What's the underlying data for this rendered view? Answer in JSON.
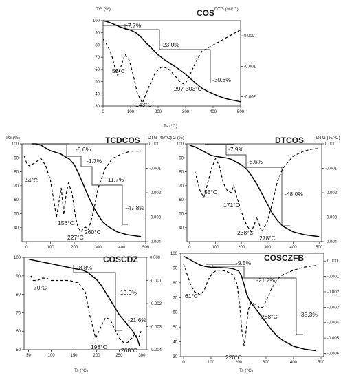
{
  "figure": {
    "panels": [
      {
        "id": "cos",
        "title": "COS",
        "y_label": "TG (%)",
        "y2_label": "DTG (%/°C)",
        "x_label": "Ts (°C)",
        "chart_data": {
          "type": "line",
          "title": "COS",
          "xlabel": "Ts (°C)",
          "ylabel": "TG (%)",
          "y2label": "DTG (%/°C)",
          "xlim": [
            0,
            500
          ],
          "ylim": [
            30,
            100
          ],
          "y2lim": [
            -0.0023,
            0.0005
          ],
          "x_ticks": [
            "0",
            "100",
            "200",
            "300",
            "400",
            "500"
          ],
          "y_ticks": [
            "30",
            "40",
            "50",
            "60",
            "70",
            "80",
            "90",
            "100"
          ],
          "y2_ticks": [
            "0.000",
            "-0.001",
            "-0.002"
          ],
          "series": [
            {
              "axis": "left",
              "style": "solid",
              "x": [
                0,
                20,
                40,
                60,
                80,
                100,
                120,
                140,
                160,
                180,
                200,
                220,
                240,
                260,
                280,
                300,
                320,
                340,
                360,
                380,
                400,
                420,
                440,
                460,
                480,
                500
              ],
              "y": [
                100,
                98.8,
                97,
                95,
                93.5,
                92.2,
                90,
                86,
                81,
                76.5,
                72,
                68.5,
                65.5,
                62.5,
                59.5,
                56,
                52,
                48,
                44.5,
                42,
                40,
                38,
                36.5,
                35.3,
                34.4,
                33.5
              ]
            },
            {
              "axis": "right",
              "style": "dashed",
              "x": [
                0,
                15,
                30,
                45,
                53,
                65,
                80,
                95,
                110,
                125,
                143,
                165,
                190,
                215,
                240,
                260,
                280,
                297,
                303,
                320,
                340,
                360,
                380,
                400,
                420,
                440,
                460,
                480,
                500
              ],
              "y": [
                -0.0001,
                -0.0003,
                -0.0006,
                -0.0011,
                -0.0013,
                -0.001,
                -0.0006,
                -0.0008,
                -0.0013,
                -0.0019,
                -0.0022,
                -0.0017,
                -0.0012,
                -0.001,
                -0.0011,
                -0.0013,
                -0.0015,
                -0.0016,
                -0.0015,
                -0.0012,
                -0.0008,
                -0.0005,
                -0.0004,
                -0.0003,
                -0.0002,
                -0.0001,
                0.0,
                0.0001,
                0.0002
              ]
            }
          ]
        },
        "annotations": [
          "-7.7%",
          "-23.0%",
          "-30.8%",
          "53°C",
          "143°C",
          "297-303°C"
        ]
      },
      {
        "id": "tcdcos",
        "title": "TCDCOS",
        "y_label": "TG (%)",
        "y2_label": "DTG (%/°C)",
        "x_label": "",
        "chart_data": {
          "type": "line",
          "title": "TCDCOS",
          "xlabel": "",
          "ylabel": "TG (%)",
          "y2label": "DTG (%/°C)",
          "xlim": [
            -20,
            500
          ],
          "ylim": [
            30,
            100
          ],
          "y2lim": [
            -0.004,
            0.0
          ],
          "x_ticks": [
            "0",
            "100",
            "200",
            "300",
            "400",
            "500"
          ],
          "y_ticks": [
            "40",
            "50",
            "60",
            "70",
            "80",
            "90",
            "100"
          ],
          "y2_ticks": [
            "0.000",
            "-0.001",
            "-0.002",
            "-0.003",
            "-0.004"
          ],
          "series": [
            {
              "axis": "left",
              "style": "solid",
              "x": [
                20,
                40,
                60,
                80,
                100,
                120,
                140,
                160,
                180,
                200,
                220,
                240,
                260,
                280,
                300,
                320,
                340,
                360,
                380,
                400,
                420,
                440,
                460,
                480
              ],
              "y": [
                100,
                100,
                99,
                97,
                95,
                94,
                93,
                91,
                89,
                85,
                78,
                70,
                62,
                55,
                49,
                44,
                41,
                39,
                37,
                36,
                35,
                34.5,
                34,
                33.5
              ]
            },
            {
              "axis": "right",
              "style": "dashed",
              "x": [
                -10,
                0,
                10,
                30,
                44,
                60,
                80,
                100,
                115,
                125,
                135,
                145,
                156,
                165,
                175,
                190,
                205,
                215,
                227,
                245,
                260,
                280,
                300,
                330,
                360,
                400,
                440,
                480
              ],
              "y": [
                -0.0005,
                -0.0008,
                -0.0009,
                -0.0008,
                -0.0007,
                -0.0006,
                -0.0009,
                -0.0015,
                -0.0024,
                -0.003,
                -0.0024,
                -0.0018,
                -0.0029,
                -0.0021,
                -0.0016,
                -0.002,
                -0.003,
                -0.0034,
                -0.0036,
                -0.0034,
                -0.0035,
                -0.0028,
                -0.0018,
                -0.001,
                -0.0006,
                -0.0004,
                -0.0003,
                -0.0003
              ]
            }
          ]
        },
        "annotations": [
          "-5.6%",
          "-1.7%",
          "-11.7%",
          "-47.8%",
          "44°C",
          "156°C",
          "227°C",
          "260°C"
        ]
      },
      {
        "id": "dtcos",
        "title": "DTCOS",
        "y_label": "TG (%)",
        "y2_label": "DTG (%/°C)",
        "x_label": "",
        "chart_data": {
          "type": "line",
          "title": "DTCOS",
          "xlabel": "",
          "ylabel": "TG (%)",
          "y2label": "DTG (%/°C)",
          "xlim": [
            -10,
            510
          ],
          "ylim": [
            30,
            100
          ],
          "y2lim": [
            -0.004,
            0.0
          ],
          "x_ticks": [
            "0",
            "100",
            "200",
            "300",
            "400",
            "500"
          ],
          "y_ticks": [
            "40",
            "50",
            "60",
            "70",
            "80",
            "90",
            "100"
          ],
          "y2_ticks": [
            "0.000",
            "-0.001",
            "-0.002",
            "-0.003",
            "-0.004"
          ],
          "series": [
            {
              "axis": "left",
              "style": "solid",
              "x": [
                0,
                20,
                40,
                60,
                80,
                100,
                120,
                140,
                160,
                180,
                200,
                220,
                240,
                260,
                280,
                300,
                320,
                340,
                360,
                380,
                400,
                420,
                440,
                460,
                480,
                500
              ],
              "y": [
                99,
                98,
                96,
                94,
                92,
                91,
                90.5,
                90,
                89,
                87,
                85,
                82,
                77,
                71,
                64,
                57,
                50,
                45,
                41,
                39,
                37,
                36,
                35,
                34.5,
                34,
                33.5
              ]
            },
            {
              "axis": "right",
              "style": "dashed",
              "x": [
                20,
                30,
                40,
                55,
                70,
                85,
                100,
                115,
                130,
                145,
                160,
                171,
                180,
                195,
                210,
                225,
                238,
                250,
                260,
                278,
                300,
                320,
                340,
                360,
                400,
                440,
                480,
                500
              ],
              "y": [
                -0.0011,
                -0.0015,
                -0.0019,
                -0.0022,
                -0.0016,
                -0.001,
                -0.0006,
                -0.0009,
                -0.0016,
                -0.0019,
                -0.002,
                -0.0017,
                -0.0021,
                -0.0026,
                -0.0031,
                -0.0034,
                -0.0036,
                -0.0033,
                -0.003,
                -0.0036,
                -0.0032,
                -0.0024,
                -0.0015,
                -0.001,
                -0.0005,
                -0.0003,
                -0.0002,
                -0.0002
              ]
            }
          ]
        },
        "annotations": [
          "-7.9%",
          "-8.6%",
          "-48.0%",
          "55°C",
          "171°C",
          "238°C",
          "278°C"
        ]
      },
      {
        "id": "coscdz",
        "title": "COSCDZ",
        "y_label": "",
        "y2_label": "",
        "x_label": "Ts (°C)",
        "chart_data": {
          "type": "line",
          "title": "COSCDZ",
          "xlabel": "Ts (°C)",
          "ylabel": "",
          "y2label": "",
          "xlim": [
            40,
            310
          ],
          "ylim": [
            50,
            100
          ],
          "y2lim": [
            -0.004,
            0.0
          ],
          "x_ticks": [
            "50",
            "100",
            "150",
            "200",
            "250",
            "300"
          ],
          "y_ticks": [
            "50",
            "60",
            "70",
            "80",
            "90",
            "100"
          ],
          "y2_ticks": [
            "0.000",
            "-0.001",
            "-0.002",
            "-0.003",
            "-0.004"
          ],
          "series": [
            {
              "axis": "left",
              "style": "solid",
              "x": [
                50,
                70,
                90,
                110,
                130,
                150,
                170,
                180,
                190,
                200,
                210,
                220,
                230,
                240,
                250,
                260,
                270,
                280,
                290,
                295
              ],
              "y": [
                99,
                98,
                97,
                96,
                95,
                94,
                93,
                92,
                90,
                88,
                85,
                81,
                77,
                73,
                69,
                66,
                63,
                60,
                56,
                52
              ]
            },
            {
              "axis": "right",
              "style": "dashed",
              "x": [
                55,
                60,
                70,
                80,
                90,
                100,
                120,
                140,
                160,
                175,
                185,
                198,
                210,
                220,
                230,
                240,
                250,
                260,
                268,
                278,
                285,
                290,
                295,
                298
              ],
              "y": [
                -0.0008,
                -0.001,
                -0.001,
                -0.0009,
                -0.0009,
                -0.001,
                -0.001,
                -0.001,
                -0.0011,
                -0.0015,
                -0.0025,
                -0.0035,
                -0.003,
                -0.0026,
                -0.0027,
                -0.0031,
                -0.0035,
                -0.0037,
                -0.0037,
                -0.0035,
                -0.0033,
                -0.0035,
                -0.0034,
                -0.0032
              ]
            }
          ]
        },
        "annotations": [
          "-8.8%",
          "-19.9%",
          "-21.6%",
          "70°C",
          "198°C",
          "268°C"
        ]
      },
      {
        "id": "cosczfb",
        "title": "COSCZFB",
        "y_label": "",
        "y2_label": "",
        "x_label": "Ts (°C)",
        "chart_data": {
          "type": "line",
          "title": "COSCZFB",
          "xlabel": "Ts (°C)",
          "ylabel": "",
          "y2label": "",
          "xlim": [
            -10,
            510
          ],
          "ylim": [
            30,
            100
          ],
          "y2lim": [
            -0.0062,
            0.0005
          ],
          "x_ticks": [
            "0",
            "100",
            "200",
            "300",
            "400",
            "500"
          ],
          "y_ticks": [
            "30",
            "40",
            "50",
            "60",
            "70",
            "80",
            "90",
            "100"
          ],
          "y2_ticks": [
            "0.000",
            "-0.001",
            "-0.002",
            "-0.003",
            "-0.004",
            "-0.005",
            "-0.006"
          ],
          "series": [
            {
              "axis": "left",
              "style": "solid",
              "x": [
                0,
                20,
                40,
                60,
                80,
                100,
                120,
                140,
                160,
                180,
                200,
                210,
                220,
                230,
                240,
                260,
                280,
                300,
                320,
                340,
                360,
                380,
                400,
                420,
                440,
                460,
                480
              ],
              "y": [
                98,
                96,
                94,
                92,
                91,
                90.5,
                90.3,
                90.2,
                90,
                89.5,
                88,
                85,
                79,
                72,
                68,
                63,
                58,
                53,
                48,
                44,
                41,
                39,
                37,
                36,
                35,
                34.5,
                34
              ]
            },
            {
              "axis": "right",
              "style": "dashed",
              "x": [
                0,
                10,
                25,
                40,
                61,
                75,
                90,
                105,
                120,
                140,
                160,
                180,
                195,
                205,
                212,
                220,
                228,
                235,
                245,
                260,
                275,
                288,
                300,
                320,
                340,
                360,
                400,
                440,
                480
              ],
              "y": [
                -0.0002,
                -0.0007,
                -0.0015,
                -0.002,
                -0.0022,
                -0.0019,
                -0.0012,
                -0.0008,
                -0.0006,
                -0.0006,
                -0.0007,
                -0.0009,
                -0.0015,
                -0.003,
                -0.0045,
                -0.0055,
                -0.0045,
                -0.0032,
                -0.0027,
                -0.0028,
                -0.003,
                -0.003,
                -0.0026,
                -0.0018,
                -0.0012,
                -0.0009,
                -0.0006,
                -0.0004,
                -0.0003
              ]
            }
          ]
        },
        "annotations": [
          "-9.5%",
          "-21.2%",
          "-35.3%",
          "61°C",
          "220°C",
          "288°C"
        ]
      }
    ]
  }
}
